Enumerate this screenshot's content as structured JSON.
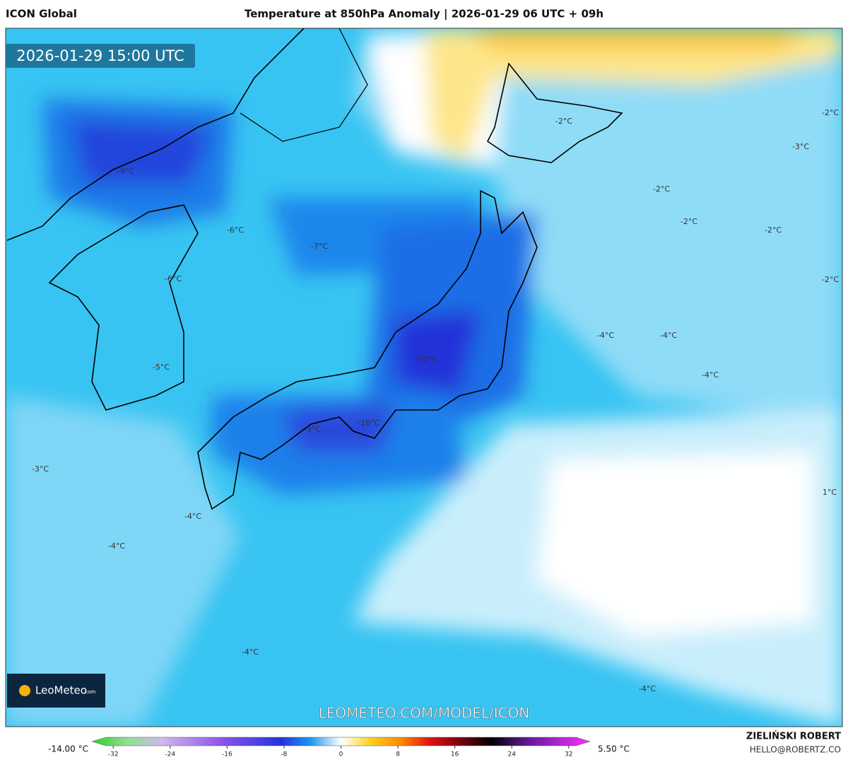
{
  "header": {
    "model": "ICON Global",
    "title": "Temperature at 850hPa Anomaly | 2026-01-29 06 UTC + 09h"
  },
  "timestamp": "2026-01-29 15:00 UTC",
  "map": {
    "labels": [
      "-9°C",
      "-6°C",
      "-7°C",
      "-6°C",
      "-5°C",
      "-10°C",
      "-10°C",
      "-9°C",
      "-3°C",
      "-4°C",
      "-4°C",
      "-4°C",
      "-4°C",
      "-2°C",
      "-2°C",
      "-3°C",
      "-2°C",
      "-2°C",
      "-2°C",
      "-2°C",
      "-4°C",
      "-4°C",
      "-4°C",
      "1°C"
    ]
  },
  "logo": {
    "name": "LeoMeteo",
    "suffix": ".com"
  },
  "watermark": "LEOMETEO.COM/MODEL/ICON",
  "colorbar": {
    "min_label": "-14.00 °C",
    "max_label": "5.50 °C",
    "ticks": [
      -32,
      -24,
      -16,
      -8,
      0,
      8,
      16,
      24,
      32
    ],
    "lim": [
      -35,
      35
    ]
  },
  "footer": {
    "author": "ZIELIŃSKI ROBERT",
    "email": "HELLO@ROBERTZ.CO"
  }
}
